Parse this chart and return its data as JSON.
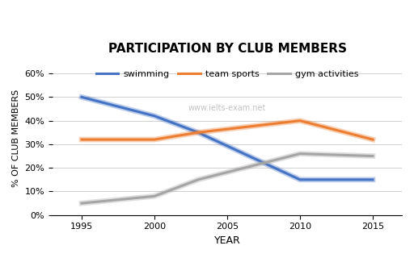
{
  "title": "PARTICIPATION BY CLUB MEMBERS",
  "xlabel": "YEAR",
  "ylabel": "% OF CLUB MEMBERS",
  "watermark": "www.ielts-exam.net",
  "years": [
    1995,
    2000,
    2003,
    2010,
    2015
  ],
  "swimming": [
    0.5,
    0.42,
    0.35,
    0.15,
    0.15
  ],
  "team_sports": [
    0.32,
    0.32,
    0.35,
    0.4,
    0.32
  ],
  "gym_activities": [
    0.05,
    0.08,
    0.15,
    0.26,
    0.25
  ],
  "swimming_color": "#4472C4",
  "team_sports_color": "#ED7D31",
  "gym_activities_color": "#A5A5A5",
  "line_width": 2.2,
  "background_color": "#FFFFFF",
  "legend_labels": [
    "swimming",
    "team sports",
    "gym activities"
  ],
  "yticks": [
    0.0,
    0.1,
    0.2,
    0.3,
    0.4,
    0.5,
    0.6
  ],
  "xticks": [
    1995,
    2000,
    2005,
    2010,
    2015
  ],
  "ylim": [
    0,
    0.65
  ],
  "xlim": [
    1993,
    2017
  ]
}
